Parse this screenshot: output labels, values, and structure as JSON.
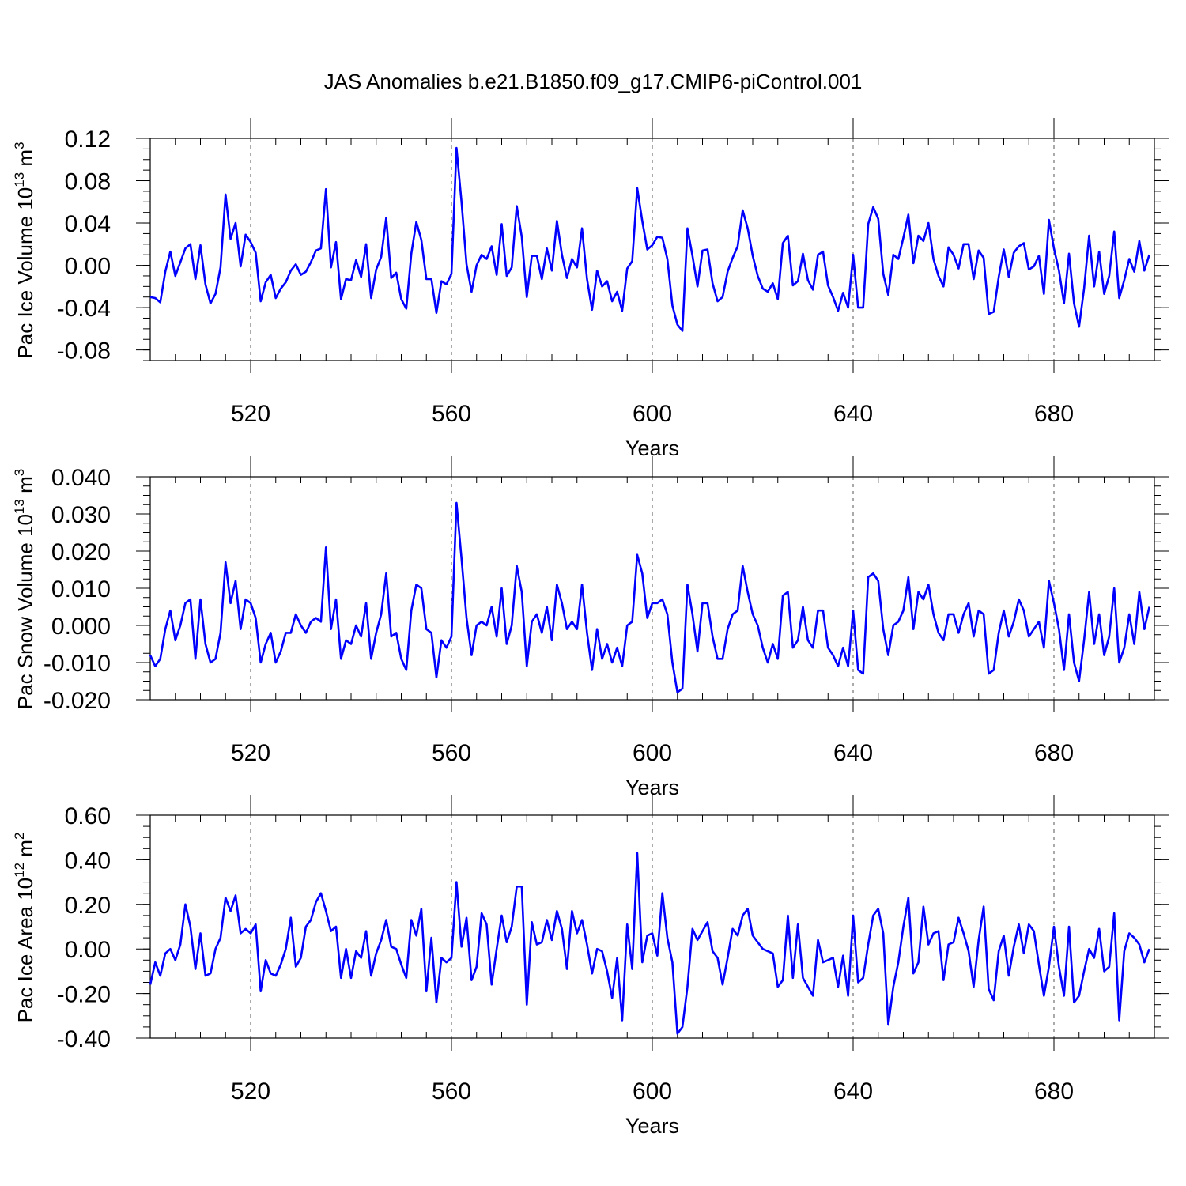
{
  "chart_data": {
    "type": "line",
    "title": "JAS Anomalies b.e21.B1850.f09_g17.CMIP6-piControl.001",
    "line_color": "#0000ff",
    "grid": "dashed vertical lines at major x ticks",
    "x": {
      "start": 500,
      "end": 700,
      "step": 1,
      "ticks": [
        520,
        560,
        600,
        640,
        680
      ],
      "tick_labels": [
        "520",
        "560",
        "600",
        "640",
        "680"
      ],
      "label": "Years"
    },
    "panels": [
      {
        "id": "ice-volume",
        "ylabel": "Pac Ice Volume 10",
        "ylabel_exp": "13",
        "ylabel_unit": " m",
        "ylabel_unit_exp": "3",
        "ylim": [
          -0.09,
          0.12
        ],
        "yticks": [
          -0.08,
          -0.04,
          0.0,
          0.04,
          0.08,
          0.12
        ],
        "ytick_labels": [
          "-0.08",
          "-0.04",
          "0.00",
          "0.04",
          "0.08",
          "0.12"
        ],
        "yminor_step": 0.01,
        "series": [
          {
            "name": "Pac Ice Volume",
            "values": [
              -0.03,
              -0.031,
              -0.035,
              -0.006,
              0.013,
              -0.01,
              0.003,
              0.016,
              0.02,
              -0.013,
              0.019,
              -0.018,
              -0.036,
              -0.027,
              -0.002,
              0.067,
              0.025,
              0.04,
              -0.001,
              0.029,
              0.022,
              0.012,
              -0.034,
              -0.016,
              -0.009,
              -0.031,
              -0.022,
              -0.016,
              -0.005,
              0.001,
              -0.009,
              -0.006,
              0.003,
              0.014,
              0.016,
              0.072,
              -0.002,
              0.022,
              -0.032,
              -0.013,
              -0.014,
              0.005,
              -0.011,
              0.02,
              -0.031,
              -0.004,
              0.008,
              0.045,
              -0.012,
              -0.007,
              -0.032,
              -0.041,
              0.011,
              0.041,
              0.024,
              -0.013,
              -0.013,
              -0.045,
              -0.015,
              -0.018,
              -0.008,
              0.111,
              0.06,
              0.001,
              -0.025,
              0.0,
              0.01,
              0.006,
              0.018,
              -0.009,
              0.039,
              -0.01,
              -0.002,
              0.056,
              0.027,
              -0.03,
              0.009,
              0.009,
              -0.013,
              0.016,
              -0.005,
              0.042,
              0.01,
              -0.012,
              0.006,
              -0.002,
              0.035,
              -0.013,
              -0.042,
              -0.005,
              -0.02,
              -0.015,
              -0.034,
              -0.025,
              -0.043,
              -0.003,
              0.004,
              0.073,
              0.042,
              0.015,
              0.019,
              0.027,
              0.026,
              0.006,
              -0.038,
              -0.056,
              -0.062,
              0.035,
              0.009,
              -0.02,
              0.014,
              0.015,
              -0.017,
              -0.034,
              -0.03,
              -0.006,
              0.007,
              0.018,
              0.052,
              0.035,
              0.009,
              -0.01,
              -0.022,
              -0.025,
              -0.017,
              -0.032,
              0.021,
              0.028,
              -0.019,
              -0.015,
              0.011,
              -0.014,
              -0.023,
              0.01,
              0.013,
              -0.019,
              -0.03,
              -0.043,
              -0.026,
              -0.04,
              0.01,
              -0.04,
              -0.04,
              0.039,
              0.055,
              0.044,
              -0.008,
              -0.028,
              0.01,
              0.006,
              0.026,
              0.048,
              0.002,
              0.028,
              0.023,
              0.04,
              0.006,
              -0.01,
              -0.02,
              0.017,
              0.01,
              -0.003,
              0.02,
              0.02,
              -0.013,
              0.014,
              0.007,
              -0.046,
              -0.044,
              -0.011,
              0.015,
              -0.011,
              0.012,
              0.018,
              0.021,
              -0.004,
              -0.001,
              0.009,
              -0.027,
              0.043,
              0.016,
              -0.005,
              -0.036,
              0.011,
              -0.036,
              -0.058,
              -0.022,
              0.028,
              -0.02,
              0.013,
              -0.027,
              -0.01,
              0.032,
              -0.031,
              -0.014,
              0.006,
              -0.006,
              0.023,
              -0.005,
              0.01
            ]
          }
        ]
      },
      {
        "id": "snow-volume",
        "ylabel": "Pac Snow Volume 10",
        "ylabel_exp": "13",
        "ylabel_unit": " m",
        "ylabel_unit_exp": "3",
        "ylim": [
          -0.02,
          0.04
        ],
        "yticks": [
          -0.02,
          -0.01,
          0.0,
          0.01,
          0.02,
          0.03,
          0.04
        ],
        "ytick_labels": [
          "-0.020",
          "-0.010",
          "0.000",
          "0.010",
          "0.020",
          "0.030",
          "0.040"
        ],
        "yminor_step": 0.0025,
        "series": [
          {
            "name": "Pac Snow Volume",
            "values": [
              -0.008,
              -0.011,
              -0.009,
              -0.001,
              0.004,
              -0.004,
              0.0,
              0.006,
              0.007,
              -0.009,
              0.007,
              -0.005,
              -0.01,
              -0.009,
              -0.002,
              0.017,
              0.006,
              0.012,
              -0.001,
              0.007,
              0.006,
              0.002,
              -0.01,
              -0.005,
              -0.002,
              -0.01,
              -0.007,
              -0.002,
              -0.002,
              0.003,
              0.0,
              -0.002,
              0.001,
              0.002,
              0.001,
              0.021,
              -0.001,
              0.007,
              -0.009,
              -0.004,
              -0.005,
              0.0,
              -0.003,
              0.006,
              -0.009,
              -0.002,
              0.003,
              0.014,
              -0.003,
              -0.002,
              -0.009,
              -0.012,
              0.004,
              0.011,
              0.01,
              -0.001,
              -0.002,
              -0.014,
              -0.004,
              -0.006,
              -0.003,
              0.033,
              0.018,
              0.002,
              -0.008,
              0.0,
              0.001,
              0.0,
              0.005,
              -0.003,
              0.01,
              -0.005,
              0.0,
              0.016,
              0.009,
              -0.011,
              0.001,
              0.003,
              -0.002,
              0.005,
              -0.004,
              0.011,
              0.006,
              -0.001,
              0.001,
              -0.001,
              0.011,
              -0.002,
              -0.012,
              -0.001,
              -0.009,
              -0.005,
              -0.01,
              -0.006,
              -0.011,
              0.0,
              0.001,
              0.019,
              0.014,
              0.002,
              0.006,
              0.006,
              0.007,
              0.003,
              -0.01,
              -0.018,
              -0.017,
              0.011,
              0.003,
              -0.007,
              0.006,
              0.006,
              -0.003,
              -0.009,
              -0.009,
              -0.001,
              0.003,
              0.004,
              0.016,
              0.009,
              0.003,
              0.0,
              -0.006,
              -0.01,
              -0.005,
              -0.009,
              0.008,
              0.009,
              -0.006,
              -0.004,
              0.005,
              -0.004,
              -0.006,
              0.004,
              0.004,
              -0.006,
              -0.008,
              -0.011,
              -0.006,
              -0.011,
              0.004,
              -0.012,
              -0.013,
              0.013,
              0.014,
              0.012,
              -0.001,
              -0.008,
              0.0,
              0.001,
              0.004,
              0.013,
              -0.001,
              0.009,
              0.007,
              0.011,
              0.003,
              -0.002,
              -0.004,
              0.003,
              0.003,
              -0.002,
              0.003,
              0.006,
              -0.003,
              0.004,
              0.003,
              -0.013,
              -0.012,
              -0.002,
              0.004,
              -0.003,
              0.001,
              0.007,
              0.004,
              -0.003,
              -0.001,
              0.001,
              -0.006,
              0.012,
              0.006,
              -0.001,
              -0.012,
              0.003,
              -0.01,
              -0.015,
              -0.004,
              0.009,
              -0.005,
              0.003,
              -0.008,
              -0.003,
              0.01,
              -0.01,
              -0.006,
              0.003,
              -0.005,
              0.009,
              -0.001,
              0.005
            ]
          }
        ]
      },
      {
        "id": "ice-area",
        "ylabel": "Pac Ice Area 10",
        "ylabel_exp": "12",
        "ylabel_unit": " m",
        "ylabel_unit_exp": "2",
        "ylim": [
          -0.4,
          0.6
        ],
        "yticks": [
          -0.4,
          -0.2,
          0.0,
          0.2,
          0.4,
          0.6
        ],
        "ytick_labels": [
          "-0.40",
          "-0.20",
          "0.00",
          "0.20",
          "0.40",
          "0.60"
        ],
        "yminor_step": 0.05,
        "series": [
          {
            "name": "Pac Ice Area",
            "values": [
              -0.16,
              -0.06,
              -0.12,
              -0.02,
              0.0,
              -0.05,
              0.02,
              0.2,
              0.1,
              -0.09,
              0.07,
              -0.12,
              -0.11,
              0.0,
              0.05,
              0.23,
              0.17,
              0.24,
              0.07,
              0.09,
              0.07,
              0.11,
              -0.19,
              -0.05,
              -0.11,
              -0.12,
              -0.07,
              0.0,
              0.14,
              -0.08,
              -0.04,
              0.1,
              0.13,
              0.21,
              0.25,
              0.17,
              0.08,
              0.1,
              -0.13,
              0.0,
              -0.13,
              -0.01,
              -0.04,
              0.08,
              -0.12,
              -0.02,
              0.04,
              0.13,
              0.01,
              0.0,
              -0.07,
              -0.13,
              0.13,
              0.06,
              0.18,
              -0.19,
              0.05,
              -0.24,
              -0.04,
              -0.06,
              -0.04,
              0.3,
              0.01,
              0.14,
              -0.14,
              -0.08,
              0.16,
              0.11,
              -0.16,
              0.0,
              0.15,
              0.03,
              0.1,
              0.28,
              0.28,
              -0.25,
              0.12,
              0.02,
              0.03,
              0.13,
              0.04,
              0.17,
              0.09,
              -0.09,
              0.17,
              0.07,
              0.13,
              0.02,
              -0.11,
              0.0,
              -0.01,
              -0.1,
              -0.22,
              -0.04,
              -0.32,
              0.11,
              -0.09,
              0.43,
              -0.06,
              0.06,
              0.07,
              -0.03,
              0.25,
              0.05,
              -0.06,
              -0.38,
              -0.35,
              -0.17,
              0.09,
              0.04,
              0.08,
              0.12,
              -0.01,
              -0.04,
              -0.16,
              -0.04,
              0.09,
              0.06,
              0.15,
              0.18,
              0.06,
              0.03,
              0.0,
              -0.01,
              -0.02,
              -0.17,
              -0.14,
              0.15,
              -0.13,
              0.11,
              -0.13,
              -0.17,
              -0.21,
              0.04,
              -0.06,
              -0.05,
              -0.04,
              -0.17,
              -0.03,
              -0.21,
              0.15,
              -0.15,
              -0.13,
              0.02,
              0.15,
              0.18,
              0.07,
              -0.34,
              -0.17,
              -0.06,
              0.1,
              0.23,
              -0.11,
              -0.06,
              0.19,
              0.02,
              0.07,
              0.08,
              -0.14,
              0.02,
              0.03,
              0.14,
              0.07,
              -0.01,
              -0.17,
              0.04,
              0.19,
              -0.18,
              -0.23,
              -0.01,
              0.06,
              -0.12,
              0.01,
              0.11,
              -0.02,
              0.11,
              0.08,
              -0.07,
              -0.21,
              -0.08,
              0.1,
              -0.08,
              -0.21,
              0.1,
              -0.24,
              -0.21,
              -0.1,
              0.0,
              -0.04,
              0.09,
              -0.1,
              -0.08,
              0.16,
              -0.32,
              -0.01,
              0.07,
              0.05,
              0.02,
              -0.06,
              0.0
            ]
          }
        ]
      }
    ]
  }
}
